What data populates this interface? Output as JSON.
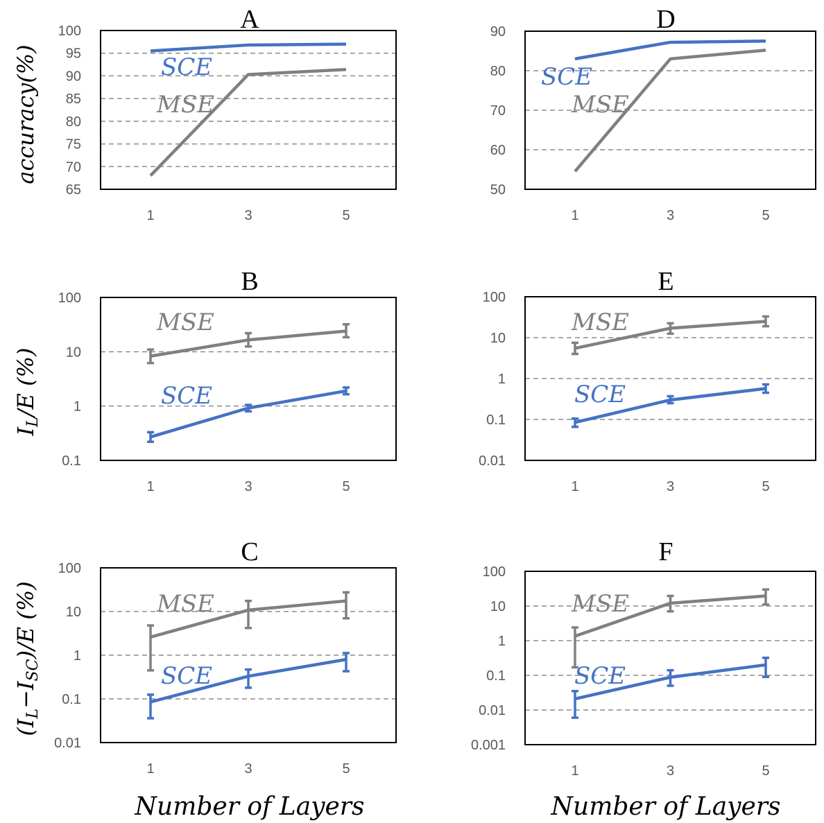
{
  "figure": {
    "x_axis_label": "Number of Layers",
    "row_labels": [
      {
        "main": "accuracy",
        "sub": "",
        "tail": "(%)"
      },
      {
        "main": "I",
        "sub": "L",
        "tail": "/E (%)"
      },
      {
        "main": "(I",
        "sub": "L",
        "mid": "−I",
        "sub2": "SC",
        "tail": ")/E (%)"
      }
    ],
    "colors": {
      "SCE": "#4472C4",
      "MSE": "#808080"
    }
  },
  "chart_data": [
    {
      "panel": "A",
      "title": "A",
      "type": "line",
      "scale": "linear",
      "x": [
        "1",
        "3",
        "5"
      ],
      "ylim": [
        65,
        100
      ],
      "yticks": [
        "65",
        "70",
        "75",
        "80",
        "85",
        "90",
        "95",
        "100"
      ],
      "ytick_values": [
        65,
        70,
        75,
        80,
        85,
        90,
        95,
        100
      ],
      "grid_values": [
        70,
        75,
        80,
        85,
        90,
        95
      ],
      "series": [
        {
          "name": "SCE",
          "values": [
            95.5,
            96.8,
            97.0
          ],
          "err": null
        },
        {
          "name": "MSE",
          "values": [
            68.0,
            90.3,
            91.4
          ],
          "err": null
        }
      ]
    },
    {
      "panel": "D",
      "title": "D",
      "type": "line",
      "scale": "linear",
      "x": [
        "1",
        "3",
        "5"
      ],
      "ylim": [
        50,
        90
      ],
      "yticks": [
        "50",
        "60",
        "70",
        "80",
        "90"
      ],
      "ytick_values": [
        50,
        60,
        70,
        80,
        90
      ],
      "grid_values": [
        60,
        70,
        80
      ],
      "series": [
        {
          "name": "SCE",
          "values": [
            83.0,
            87.2,
            87.5
          ],
          "err": null
        },
        {
          "name": "MSE",
          "values": [
            54.5,
            83.0,
            85.2
          ],
          "err": null
        }
      ]
    },
    {
      "panel": "B",
      "title": "B",
      "type": "line",
      "scale": "log",
      "x": [
        "1",
        "3",
        "5"
      ],
      "ylim": [
        0.1,
        100
      ],
      "yticks": [
        "0.1",
        "1",
        "10",
        "100"
      ],
      "ytick_values": [
        0.1,
        1,
        10,
        100
      ],
      "grid_values": [
        1,
        10
      ],
      "series": [
        {
          "name": "MSE",
          "values": [
            8.3,
            16.5,
            24.0
          ],
          "err": [
            [
              6.2,
              11.0
            ],
            [
              12.5,
              22.0
            ],
            [
              18.5,
              32.0
            ]
          ]
        },
        {
          "name": "SCE",
          "values": [
            0.27,
            0.92,
            1.9
          ],
          "err": [
            [
              0.22,
              0.33
            ],
            [
              0.8,
              1.05
            ],
            [
              1.65,
              2.2
            ]
          ]
        }
      ]
    },
    {
      "panel": "E",
      "title": "E",
      "type": "line",
      "scale": "log",
      "x": [
        "1",
        "3",
        "5"
      ],
      "ylim": [
        0.01,
        100
      ],
      "yticks": [
        "0.01",
        "0.1",
        "1",
        "10",
        "100"
      ],
      "ytick_values": [
        0.01,
        0.1,
        1,
        10,
        100
      ],
      "grid_values": [
        0.1,
        1,
        10
      ],
      "series": [
        {
          "name": "MSE",
          "values": [
            5.5,
            17.0,
            25.0
          ],
          "err": [
            [
              4.0,
              7.5
            ],
            [
              12.5,
              22.5
            ],
            [
              19.0,
              33.0
            ]
          ]
        },
        {
          "name": "SCE",
          "values": [
            0.085,
            0.3,
            0.57
          ],
          "err": [
            [
              0.066,
              0.105
            ],
            [
              0.25,
              0.37
            ],
            [
              0.45,
              0.72
            ]
          ]
        }
      ]
    },
    {
      "panel": "C",
      "title": "C",
      "type": "line",
      "scale": "log",
      "x": [
        "1",
        "3",
        "5"
      ],
      "ylim": [
        0.01,
        100
      ],
      "yticks": [
        "0.01",
        "0.1",
        "1",
        "10",
        "100"
      ],
      "ytick_values": [
        0.01,
        0.1,
        1,
        10,
        100
      ],
      "grid_values": [
        0.1,
        1,
        10
      ],
      "series": [
        {
          "name": "MSE",
          "values": [
            2.6,
            10.8,
            17.5
          ],
          "err": [
            [
              0.45,
              4.8
            ],
            [
              4.2,
              17.5
            ],
            [
              7.0,
              27.5
            ]
          ]
        },
        {
          "name": "SCE",
          "values": [
            0.085,
            0.33,
            0.8
          ],
          "err": [
            [
              0.036,
              0.125
            ],
            [
              0.18,
              0.47
            ],
            [
              0.43,
              1.12
            ]
          ]
        }
      ]
    },
    {
      "panel": "F",
      "title": "F",
      "type": "line",
      "scale": "log",
      "x": [
        "1",
        "3",
        "5"
      ],
      "ylim": [
        0.001,
        100
      ],
      "yticks": [
        "0.001",
        "0.01",
        "0.1",
        "1",
        "10",
        "100"
      ],
      "ytick_values": [
        0.001,
        0.01,
        0.1,
        1,
        10,
        100
      ],
      "grid_values": [
        0.01,
        0.1,
        1,
        10
      ],
      "series": [
        {
          "name": "MSE",
          "values": [
            1.35,
            12.0,
            19.5
          ],
          "err": [
            [
              0.17,
              2.4
            ],
            [
              7.0,
              19.5
            ],
            [
              11.0,
              30.0
            ]
          ]
        },
        {
          "name": "SCE",
          "values": [
            0.021,
            0.088,
            0.2
          ],
          "err": [
            [
              0.006,
              0.035
            ],
            [
              0.05,
              0.14
            ],
            [
              0.09,
              0.32
            ]
          ]
        }
      ]
    }
  ]
}
